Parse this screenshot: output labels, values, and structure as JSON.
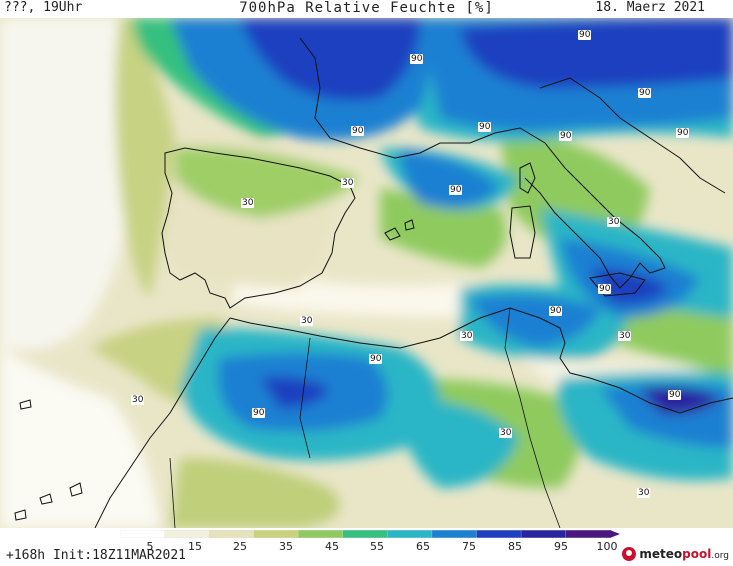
{
  "header": {
    "left": "???, 19Uhr",
    "title": "700hPa Relative Feuchte [%]",
    "date": "18. Maerz 2021"
  },
  "map": {
    "contour_labels": [
      "90",
      "90",
      "90",
      "90",
      "90",
      "90",
      "90",
      "90",
      "90",
      "90",
      "90",
      "90",
      "90",
      "30",
      "30",
      "30",
      "30",
      "30",
      "30",
      "30",
      "30",
      "30"
    ]
  },
  "colorbar": {
    "ticks": [
      "5",
      "15",
      "25",
      "35",
      "45",
      "55",
      "65",
      "75",
      "85",
      "95",
      "100"
    ],
    "colors": [
      "#ffffff",
      "#f2f0dc",
      "#e6e2bc",
      "#c9d27f",
      "#8fca5f",
      "#35c07f",
      "#2bb6c6",
      "#1e80d2",
      "#1f3fc0",
      "#2a23a0",
      "#4a1680"
    ]
  },
  "footer": {
    "init": "+168h Init:18Z11MAR2021",
    "logo_main": "meteo",
    "logo_accent": "pool",
    "logo_suffix": ".org"
  }
}
